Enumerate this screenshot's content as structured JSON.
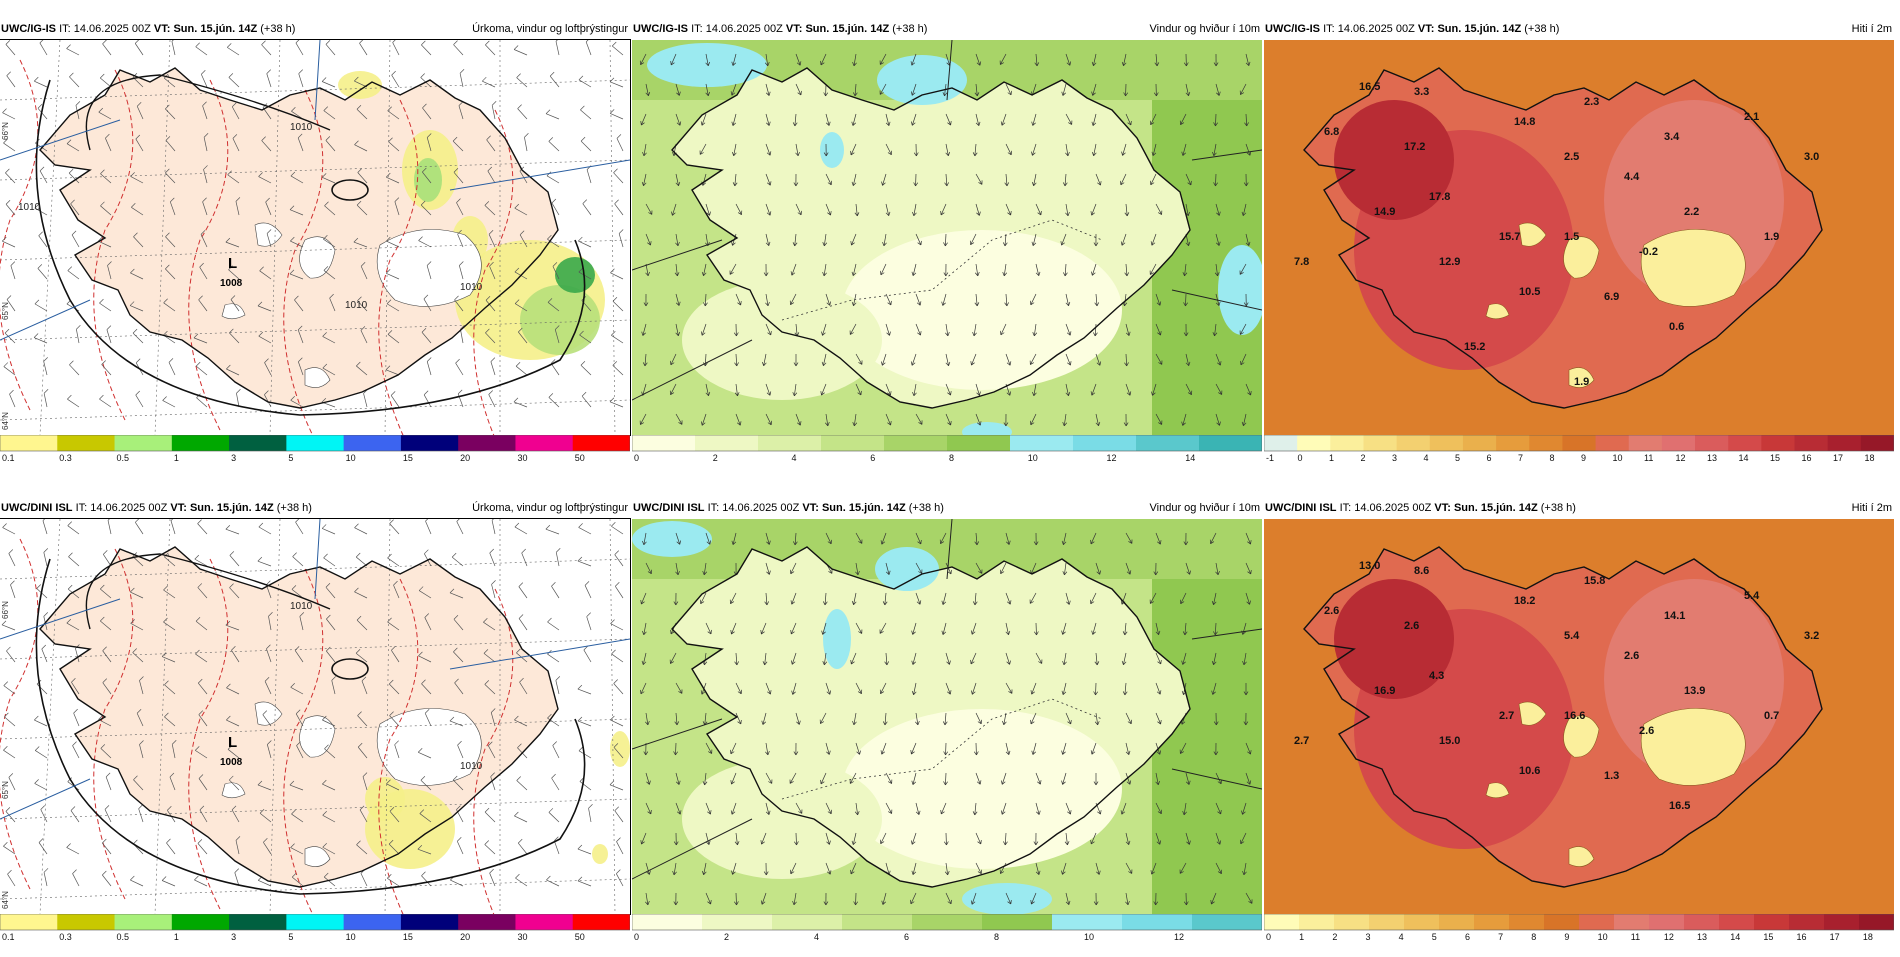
{
  "rows": [
    {
      "model": "UWC/IG-IS",
      "it_label": "IT:",
      "it_value": "14.06.2025 00Z",
      "vt_label": "VT:",
      "vt_value": "Sun. 15.jún. 14Z",
      "lead": "(+38 h)",
      "panels": [
        {
          "field": "Úrkoma, vindur og loftþrýstingur",
          "low_label": "L",
          "low_value": "1008",
          "isobar_labels": [
            "1010",
            "1010",
            "1010",
            "1010"
          ],
          "lat_labels": [
            "66°N",
            "65°N",
            "64°N"
          ]
        },
        {
          "field": "Vindur og hviður í 10m"
        },
        {
          "field": "Hiti í 2m",
          "temps": [
            {
              "v": "16.5"
            },
            {
              "v": "3.3"
            },
            {
              "v": "6.8"
            },
            {
              "v": "17.2"
            },
            {
              "v": "14.8"
            },
            {
              "v": "2.3"
            },
            {
              "v": "2.1"
            },
            {
              "v": "3.4"
            },
            {
              "v": "3.0"
            },
            {
              "v": "2.5"
            },
            {
              "v": "4.4"
            },
            {
              "v": "17.8"
            },
            {
              "v": "14.9"
            },
            {
              "v": "2.2"
            },
            {
              "v": "15.7"
            },
            {
              "v": "1.5"
            },
            {
              "v": "1.9"
            },
            {
              "v": "7.8"
            },
            {
              "v": "12.9"
            },
            {
              "v": "-0.2"
            },
            {
              "v": "10.5"
            },
            {
              "v": "6.9"
            },
            {
              "v": "0.6"
            },
            {
              "v": "15.2"
            },
            {
              "v": "1.9"
            }
          ]
        }
      ]
    },
    {
      "model": "UWC/DINI ISL",
      "it_label": "IT:",
      "it_value": "14.06.2025 00Z",
      "vt_label": "VT:",
      "vt_value": "Sun. 15.jún. 14Z",
      "lead": "(+38 h)",
      "panels": [
        {
          "field": "Úrkoma, vindur og loftþrýstingur",
          "low_label": "L",
          "low_value": "1008",
          "isobar_labels": [
            "1010",
            "1010"
          ],
          "lat_labels": [
            "66°N",
            "65°N",
            "64°N"
          ]
        },
        {
          "field": "Vindur og hviður í 10m"
        },
        {
          "field": "Hiti í 2m",
          "temps": [
            {
              "v": "13.0"
            },
            {
              "v": "8.6"
            },
            {
              "v": "2.6"
            },
            {
              "v": "2.6"
            },
            {
              "v": "18.2"
            },
            {
              "v": "15.8"
            },
            {
              "v": "5.4"
            },
            {
              "v": "14.1"
            },
            {
              "v": "3.2"
            },
            {
              "v": "5.4"
            },
            {
              "v": "2.6"
            },
            {
              "v": "4.3"
            },
            {
              "v": "16.9"
            },
            {
              "v": "13.9"
            },
            {
              "v": "2.7"
            },
            {
              "v": "16.6"
            },
            {
              "v": "0.7"
            },
            {
              "v": "2.7"
            },
            {
              "v": "15.0"
            },
            {
              "v": "2.6"
            },
            {
              "v": "10.6"
            },
            {
              "v": "1.3"
            },
            {
              "v": "16.5"
            }
          ]
        }
      ]
    }
  ],
  "legends": {
    "precip": {
      "labels": [
        "0.1",
        "0.3",
        "0.5",
        "1",
        "3",
        "5",
        "10",
        "15",
        "20",
        "30",
        "50"
      ],
      "colors": [
        "#fff68f",
        "#c8c800",
        "#a8f07a",
        "#00a800",
        "#006040",
        "#00f5f5",
        "#3c64f0",
        "#00007a",
        "#7a0060",
        "#f00090",
        "#ff0000"
      ]
    },
    "wind_row1": {
      "labels": [
        "0",
        "2",
        "4",
        "6",
        "8",
        "10",
        "12",
        "14"
      ],
      "colors": [
        "#fcfee0",
        "#eef8c4",
        "#dcf0a8",
        "#c4e488",
        "#a8d468",
        "#90c850",
        "#9beaf0",
        "#7adce6",
        "#5ac8cc",
        "#3ab4b4"
      ]
    },
    "wind_row2": {
      "labels": [
        "0",
        "2",
        "4",
        "6",
        "8",
        "10",
        "12"
      ],
      "colors": [
        "#fcfee0",
        "#eef8c4",
        "#dcf0a8",
        "#c4e488",
        "#a8d468",
        "#90c850",
        "#9beaf0",
        "#7adce6",
        "#5ac8cc"
      ]
    },
    "temp_row1": {
      "labels": [
        "-1",
        "0",
        "1",
        "2",
        "3",
        "4",
        "5",
        "6",
        "7",
        "8",
        "9",
        "10",
        "11",
        "12",
        "13",
        "14",
        "15",
        "16",
        "17",
        "18"
      ],
      "colors": [
        "#dff0ea",
        "#fffcb8",
        "#fbef9c",
        "#f7e084",
        "#f3d070",
        "#efc05c",
        "#eab04c",
        "#e69c3c",
        "#e08830",
        "#d87428",
        "#e06a50",
        "#e27c70",
        "#e07070",
        "#da5c5c",
        "#d44a4a",
        "#c83838",
        "#b82c34",
        "#a8202e",
        "#961828"
      ]
    },
    "temp_row2": {
      "labels": [
        "0",
        "1",
        "2",
        "3",
        "4",
        "5",
        "6",
        "7",
        "8",
        "9",
        "10",
        "11",
        "12",
        "13",
        "14",
        "15",
        "16",
        "17",
        "18"
      ],
      "colors": [
        "#fffcb8",
        "#fbef9c",
        "#f7e084",
        "#f3d070",
        "#efc05c",
        "#eab04c",
        "#e69c3c",
        "#e08830",
        "#d87428",
        "#e06a50",
        "#e27c70",
        "#e07070",
        "#da5c5c",
        "#d44a4a",
        "#c83838",
        "#b82c34",
        "#a8202e",
        "#961828"
      ]
    }
  }
}
